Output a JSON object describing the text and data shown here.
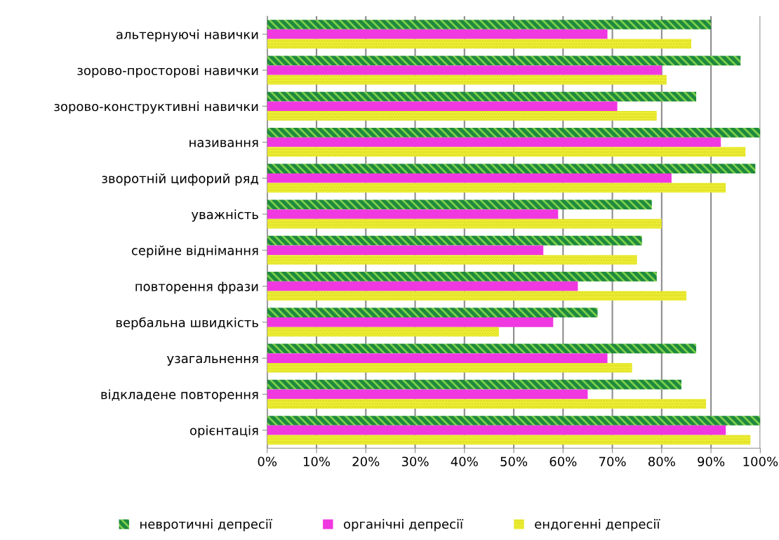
{
  "chart_data": {
    "type": "bar",
    "orientation": "horizontal",
    "categories": [
      "альтернуючі навички",
      "зорово-просторові навички",
      "зорово-конструктивні навички",
      "називання",
      "зворотній цифорий ряд",
      "уважність",
      "серійне віднімання",
      "повторення фрази",
      "вербальна швидкість",
      "узагальнення",
      "відкладене повторення",
      "орієнтація"
    ],
    "series": [
      {
        "name": "невротичні депресії",
        "color": "#1e8a3e",
        "values": [
          90,
          96,
          87,
          100,
          99,
          78,
          76,
          79,
          67,
          87,
          84,
          100
        ]
      },
      {
        "name": "органічні депресії",
        "color": "#f038e0",
        "values": [
          69,
          80,
          71,
          92,
          82,
          59,
          56,
          63,
          58,
          69,
          65,
          93
        ]
      },
      {
        "name": "ендогенні депресії",
        "color": "#f5f53c",
        "values": [
          86,
          81,
          79,
          97,
          93,
          80,
          75,
          85,
          47,
          74,
          89,
          98
        ]
      }
    ],
    "xlim": [
      0,
      100
    ],
    "xticks": [
      {
        "value": 0,
        "label": "0%"
      },
      {
        "value": 10,
        "label": "10%"
      },
      {
        "value": 20,
        "label": "20%"
      },
      {
        "value": 30,
        "label": "30%"
      },
      {
        "value": 40,
        "label": "40%"
      },
      {
        "value": 50,
        "label": "50%"
      },
      {
        "value": 60,
        "label": "60%"
      },
      {
        "value": 70,
        "label": "70%"
      },
      {
        "value": 80,
        "label": "80%"
      },
      {
        "value": 90,
        "label": "90%"
      },
      {
        "value": 100,
        "label": "100%"
      }
    ],
    "grid": "x",
    "legend": "bottom"
  }
}
